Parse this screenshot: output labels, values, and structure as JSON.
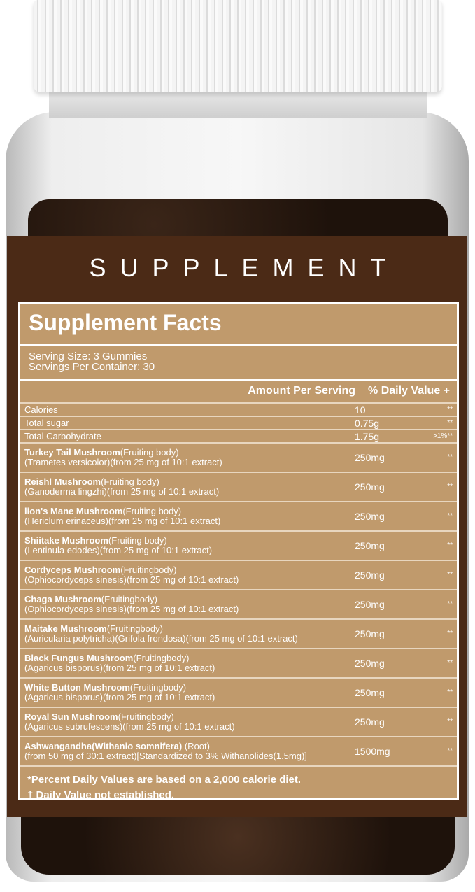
{
  "brand": "SUPPLEMENT",
  "facts": {
    "title": "Supplement Facts",
    "serving_size": "Serving Size: 3 Gummies",
    "servings_per_container": "Servings Per Container: 30",
    "header_amount": "Amount Per Serving",
    "header_dv": "% Daily Value +",
    "simple_rows": [
      {
        "name": "Calories",
        "amount": "10",
        "dv": "**"
      },
      {
        "name": "Total sugar",
        "amount": "0.75g",
        "dv": "**"
      },
      {
        "name": "Total Carbohydrate",
        "amount": "1.75g",
        "dv": ">1%**"
      }
    ],
    "ingredients": [
      {
        "name": "Turkey Tail Mushroom",
        "part": "(Fruiting body)",
        "detail": "(Trametes versicolor)(from 25 mg of 10:1 extract)",
        "amount": "250mg",
        "dv": "**"
      },
      {
        "name": "Reishl Mushroom",
        "part": "(Fruiting body)",
        "detail": "(Ganoderma lingzhi)(from 25 mg of 10:1 extract)",
        "amount": "250mg",
        "dv": "**"
      },
      {
        "name": "lion's Mane Mushroom",
        "part": "(Fruiting body)",
        "detail": "(Hericlum erinaceus)(from 25 mg of 10:1 extract)",
        "amount": "250mg",
        "dv": "**"
      },
      {
        "name": "Shiitake Mushroom",
        "part": "(Fruiting body)",
        "detail": "(Lentinula edodes)(from 25 mg of 10:1 extract)",
        "amount": "250mg",
        "dv": "**"
      },
      {
        "name": "Cordyceps Mushroom",
        "part": "(Fruitingbody)",
        "detail": "(Ophiocordyceps sinesis)(from 25 mg of 10:1 extract)",
        "amount": "250mg",
        "dv": "**"
      },
      {
        "name": "Chaga Mushroom",
        "part": "(Fruitingbody)",
        "detail": "(Ophiocordyceps sinesis)(from 25 mg of 10:1 extract)",
        "amount": "250mg",
        "dv": "**"
      },
      {
        "name": "Maitake Mushroom",
        "part": "(Fruitingbody)",
        "detail": "(Auricularia polytricha)(Grifola frondosa)(from 25 mg of 10:1 extract)",
        "amount": "250mg",
        "dv": "**"
      },
      {
        "name": "Black Fungus Mushroom",
        "part": "(Fruitingbody)",
        "detail": "(Agaricus bisporus)(from 25 mg of 10:1 extract)",
        "amount": "250mg",
        "dv": "**"
      },
      {
        "name": "White Button Mushroom",
        "part": "(Fruitingbody)",
        "detail": "(Agaricus bisporus)(from 25 mg of 10:1 extract)",
        "amount": "250mg",
        "dv": "**"
      },
      {
        "name": "Royal Sun Mushroom",
        "part": "(Fruitingbody)",
        "detail": "(Agaricus subrufescens)(from 25 mg of 10:1 extract)",
        "amount": "250mg",
        "dv": "**"
      },
      {
        "name": "Ashwangandha(Withanio somnifera)",
        "part": " (Root)",
        "detail": "(from 50 mg of 30:1 extract)[Standardized to 3% Withanolides(1.5mg)]",
        "amount": "1500mg",
        "dv": "**"
      }
    ],
    "footnote1": "*Percent Daily Values are based on a 2,000 calorie diet.",
    "footnote2": "† Daily Value not established."
  },
  "colors": {
    "label_brown": "#4b2a16",
    "facts_tan": "#c09a6c"
  }
}
